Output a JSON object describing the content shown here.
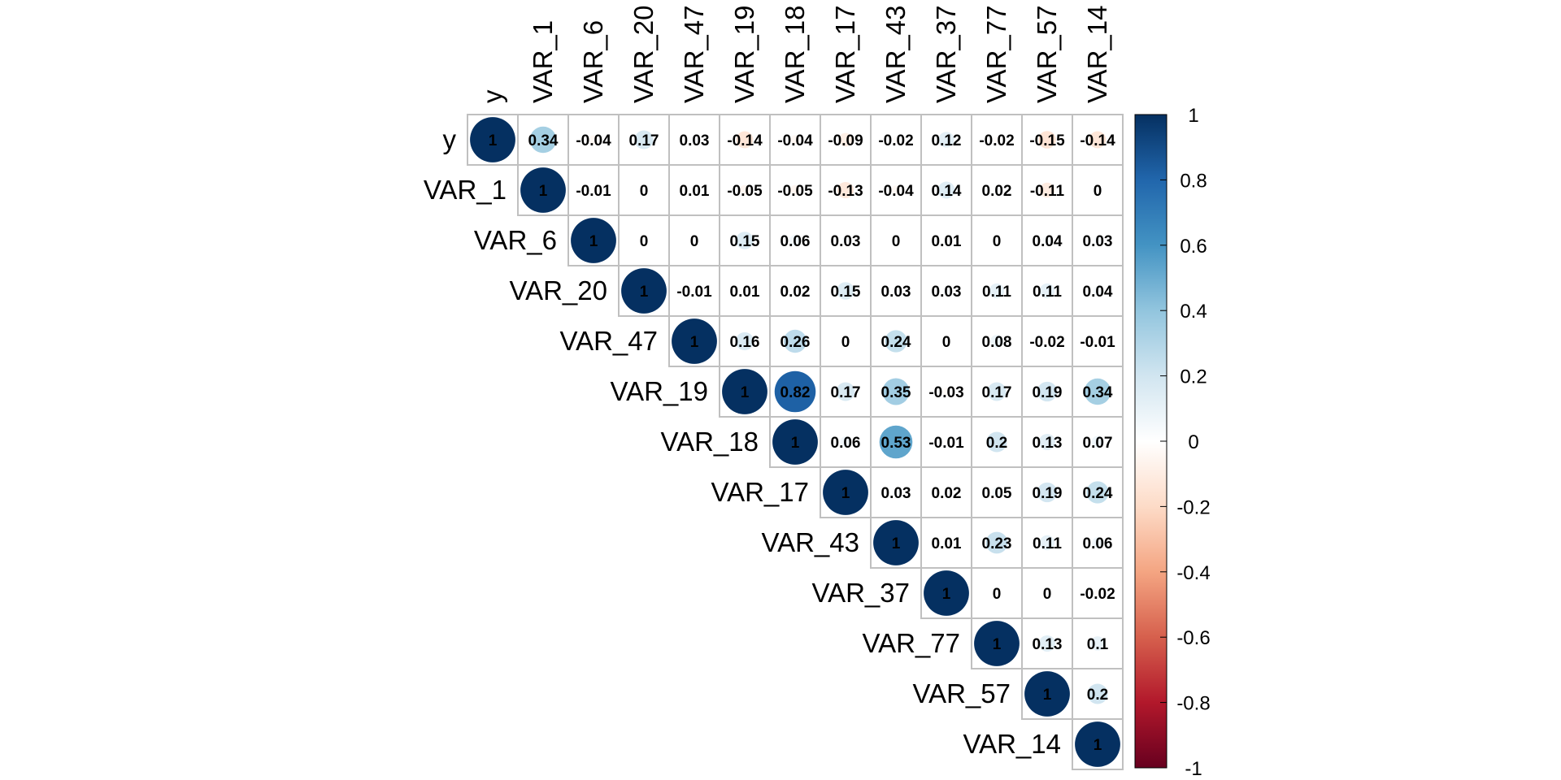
{
  "chart_data": {
    "type": "heatmap",
    "subtype": "correlation-matrix-upper-circle",
    "title": "",
    "variables": [
      "y",
      "VAR_1",
      "VAR_6",
      "VAR_20",
      "VAR_47",
      "VAR_19",
      "VAR_18",
      "VAR_17",
      "VAR_43",
      "VAR_37",
      "VAR_77",
      "VAR_57",
      "VAR_14"
    ],
    "matrix": [
      [
        1,
        0.34,
        -0.04,
        0.17,
        0.03,
        -0.14,
        -0.04,
        -0.09,
        -0.02,
        0.12,
        -0.02,
        -0.15,
        -0.14
      ],
      [
        null,
        1,
        -0.01,
        0,
        0.01,
        -0.05,
        -0.05,
        -0.13,
        -0.04,
        0.14,
        0.02,
        -0.11,
        0
      ],
      [
        null,
        null,
        1,
        0,
        0,
        0.15,
        0.06,
        0.03,
        0,
        0.01,
        0,
        0.04,
        0.03
      ],
      [
        null,
        null,
        null,
        1,
        -0.01,
        0.01,
        0.02,
        0.15,
        0.03,
        0.03,
        0.11,
        0.11,
        0.04
      ],
      [
        null,
        null,
        null,
        null,
        1,
        0.16,
        0.26,
        0,
        0.24,
        0,
        0.08,
        -0.02,
        -0.01
      ],
      [
        null,
        null,
        null,
        null,
        null,
        1,
        0.82,
        0.17,
        0.35,
        -0.03,
        0.17,
        0.19,
        0.34
      ],
      [
        null,
        null,
        null,
        null,
        null,
        null,
        1,
        0.06,
        0.53,
        -0.01,
        0.2,
        0.13,
        0.07
      ],
      [
        null,
        null,
        null,
        null,
        null,
        null,
        null,
        1,
        0.03,
        0.02,
        0.05,
        0.19,
        0.24
      ],
      [
        null,
        null,
        null,
        null,
        null,
        null,
        null,
        null,
        1,
        0.01,
        0.23,
        0.11,
        0.06
      ],
      [
        null,
        null,
        null,
        null,
        null,
        null,
        null,
        null,
        null,
        1,
        0,
        0,
        -0.02
      ],
      [
        null,
        null,
        null,
        null,
        null,
        null,
        null,
        null,
        null,
        null,
        1,
        0.13,
        0.1
      ],
      [
        null,
        null,
        null,
        null,
        null,
        null,
        null,
        null,
        null,
        null,
        null,
        1,
        0.2
      ],
      [
        null,
        null,
        null,
        null,
        null,
        null,
        null,
        null,
        null,
        null,
        null,
        null,
        1
      ]
    ],
    "legend": {
      "min": -1,
      "max": 1,
      "ticks": [
        "1",
        "0.8",
        "0.6",
        "0.4",
        "0.2",
        "0",
        "-0.2",
        "-0.4",
        "-0.6",
        "-0.8",
        "-1"
      ],
      "placement": "right"
    },
    "colors": {
      "negative_end": "#67001f",
      "neutral": "#ffffff",
      "positive_end": "#053061",
      "grid": "#c0c0c0"
    },
    "grid": true
  }
}
